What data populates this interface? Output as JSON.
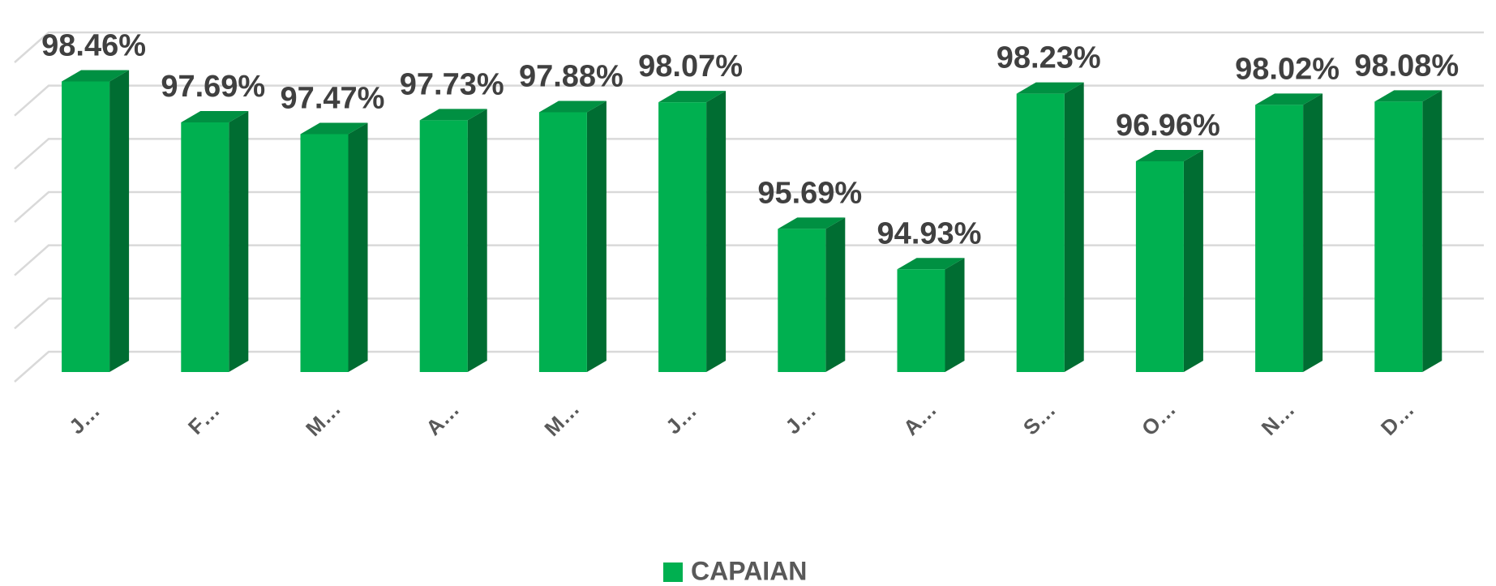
{
  "chart_data": {
    "type": "bar3d",
    "categories": [
      "J…",
      "F…",
      "M…",
      "A…",
      "M…",
      "J…",
      "J…",
      "A…",
      "S…",
      "O…",
      "N…",
      "D…"
    ],
    "series": [
      {
        "name": "CAPAIAN",
        "color": "#00b050",
        "values": [
          98.46,
          97.69,
          97.47,
          97.73,
          97.88,
          98.07,
          95.69,
          94.93,
          98.23,
          96.96,
          98.02,
          98.08
        ],
        "value_labels": [
          "98.46%",
          "97.69%",
          "97.47%",
          "97.73%",
          "97.88%",
          "98.07%",
          "95.69%",
          "94.93%",
          "98.23%",
          "96.96%",
          "98.02%",
          "98.08%"
        ]
      }
    ],
    "ylim": [
      93,
      99
    ],
    "yticks": [
      93,
      94,
      95,
      96,
      97,
      98,
      99
    ],
    "grid": true,
    "legend": "bottom"
  }
}
